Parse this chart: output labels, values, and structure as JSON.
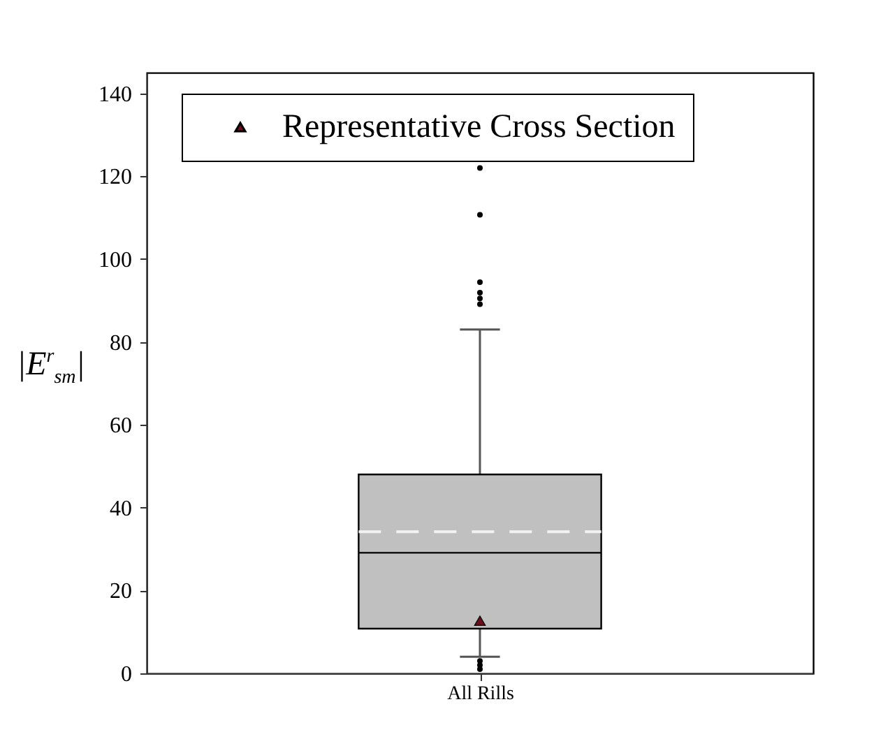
{
  "chart_data": {
    "type": "box",
    "ylabel": "|E$^{r}$$_{sm}$|",
    "categories": [
      "All Rills"
    ],
    "boxes": [
      {
        "low": 4,
        "q1": 10.8,
        "median": 29.1,
        "q3": 48,
        "high": 83,
        "mean": 34.2,
        "outliers": [
          122,
          110.7,
          94.4,
          91.9,
          90.5,
          89.1,
          3,
          2,
          1
        ]
      }
    ],
    "series": [
      {
        "name": "Representative Cross Section",
        "type": "scatter",
        "marker": "triangle",
        "color": "#6b0f1a",
        "x": [
          "All Rills"
        ],
        "values": [
          12.7
        ]
      }
    ],
    "ylim": [
      0,
      145
    ],
    "yticks": [
      0,
      20,
      40,
      60,
      80,
      100,
      120,
      140
    ],
    "grid": false,
    "legend": "top"
  }
}
